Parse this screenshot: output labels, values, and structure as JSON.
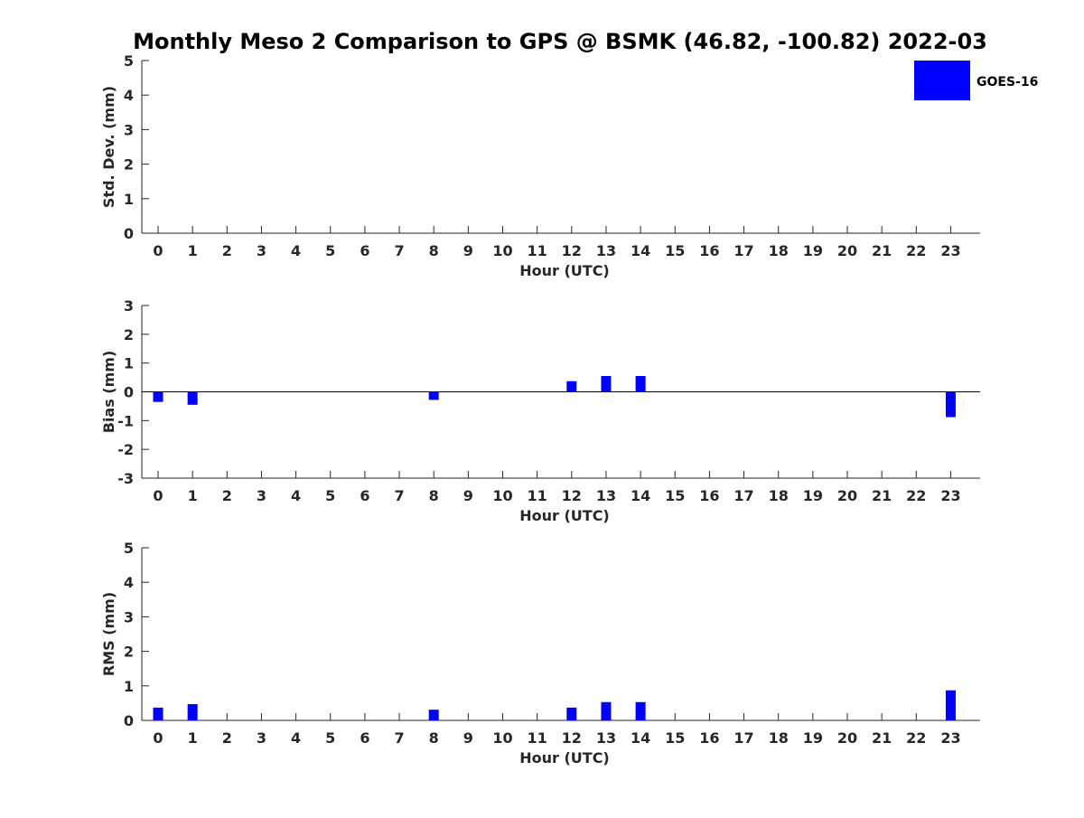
{
  "title": "Monthly Meso 2 Comparison to GPS @ BSMK (46.82, -100.82) 2022-03",
  "colors": {
    "bar": "#0000ff",
    "axis": "#262626",
    "background": "#ffffff"
  },
  "legend": {
    "label": "GOES-16",
    "position": "top-right"
  },
  "chart_data": [
    {
      "type": "bar",
      "ylabel": "Std. Dev. (mm)",
      "xlabel": "Hour (UTC)",
      "ylim": [
        0,
        5
      ],
      "yticks": [
        0,
        1,
        2,
        3,
        4,
        5
      ],
      "categories": [
        "0",
        "1",
        "2",
        "3",
        "4",
        "5",
        "6",
        "7",
        "8",
        "9",
        "10",
        "11",
        "12",
        "13",
        "14",
        "15",
        "16",
        "17",
        "18",
        "19",
        "20",
        "21",
        "22",
        "23"
      ],
      "series": [
        {
          "name": "GOES-16",
          "values": [
            0,
            0,
            0,
            0,
            0,
            0,
            0,
            0,
            0,
            0,
            0,
            0,
            0,
            0,
            0,
            0,
            0,
            0,
            0,
            0,
            0,
            0,
            0,
            0
          ]
        }
      ],
      "zero_line": false
    },
    {
      "type": "bar",
      "ylabel": "Bias (mm)",
      "xlabel": "Hour (UTC)",
      "ylim": [
        -3,
        3
      ],
      "yticks": [
        -3,
        -2,
        -1,
        0,
        1,
        2,
        3
      ],
      "categories": [
        "0",
        "1",
        "2",
        "3",
        "4",
        "5",
        "6",
        "7",
        "8",
        "9",
        "10",
        "11",
        "12",
        "13",
        "14",
        "15",
        "16",
        "17",
        "18",
        "19",
        "20",
        "21",
        "22",
        "23"
      ],
      "series": [
        {
          "name": "GOES-16",
          "values": [
            -0.35,
            -0.45,
            0,
            0,
            0,
            0,
            0,
            0,
            -0.28,
            0,
            0,
            0,
            0.37,
            0.55,
            0.55,
            0,
            0,
            0,
            0,
            0,
            0,
            0,
            0,
            -0.88
          ]
        }
      ],
      "zero_line": true
    },
    {
      "type": "bar",
      "ylabel": "RMS (mm)",
      "xlabel": "Hour (UTC)",
      "ylim": [
        0,
        5
      ],
      "yticks": [
        0,
        1,
        2,
        3,
        4,
        5
      ],
      "categories": [
        "0",
        "1",
        "2",
        "3",
        "4",
        "5",
        "6",
        "7",
        "8",
        "9",
        "10",
        "11",
        "12",
        "13",
        "14",
        "15",
        "16",
        "17",
        "18",
        "19",
        "20",
        "21",
        "22",
        "23"
      ],
      "series": [
        {
          "name": "GOES-16",
          "values": [
            0.37,
            0.47,
            0,
            0,
            0,
            0,
            0,
            0,
            0.31,
            0,
            0,
            0,
            0.37,
            0.53,
            0.53,
            0,
            0,
            0,
            0,
            0,
            0,
            0,
            0,
            0.87
          ]
        }
      ],
      "zero_line": false
    }
  ]
}
